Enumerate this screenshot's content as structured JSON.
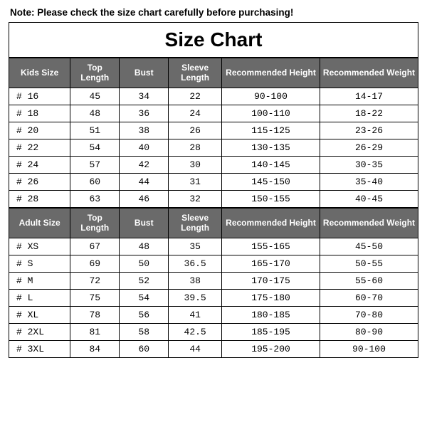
{
  "note_text": "Note: Please check the size chart carefully before purchasing!",
  "title": "Size Chart",
  "styling": {
    "header_bg": "#6a6a6a",
    "header_fg": "#ffffff",
    "border_color": "#000000",
    "body_bg": "#ffffff",
    "title_fontsize": 28,
    "header_fontsize": 12,
    "cell_fontsize": 13,
    "cell_font": "monospace"
  },
  "kids": {
    "headers": {
      "size": "Kids Size",
      "top": "Top Length",
      "bust": "Bust",
      "sleeve": "Sleeve Length",
      "height": "Recommended Height",
      "weight": "Recommended Weight"
    },
    "rows": [
      {
        "size": "# 16",
        "top": "45",
        "bust": "34",
        "sleeve": "22",
        "height": "90-100",
        "weight": "14-17"
      },
      {
        "size": "# 18",
        "top": "48",
        "bust": "36",
        "sleeve": "24",
        "height": "100-110",
        "weight": "18-22"
      },
      {
        "size": "# 20",
        "top": "51",
        "bust": "38",
        "sleeve": "26",
        "height": "115-125",
        "weight": "23-26"
      },
      {
        "size": "# 22",
        "top": "54",
        "bust": "40",
        "sleeve": "28",
        "height": "130-135",
        "weight": "26-29"
      },
      {
        "size": "# 24",
        "top": "57",
        "bust": "42",
        "sleeve": "30",
        "height": "140-145",
        "weight": "30-35"
      },
      {
        "size": "# 26",
        "top": "60",
        "bust": "44",
        "sleeve": "31",
        "height": "145-150",
        "weight": "35-40"
      },
      {
        "size": "# 28",
        "top": "63",
        "bust": "46",
        "sleeve": "32",
        "height": "150-155",
        "weight": "40-45"
      }
    ]
  },
  "adult": {
    "headers": {
      "size": "Adult Size",
      "top": "Top Length",
      "bust": "Bust",
      "sleeve": "Sleeve Length",
      "height": "Recommended Height",
      "weight": "Recommended Weight"
    },
    "rows": [
      {
        "size": "# XS",
        "top": "67",
        "bust": "48",
        "sleeve": "35",
        "height": "155-165",
        "weight": "45-50"
      },
      {
        "size": "# S",
        "top": "69",
        "bust": "50",
        "sleeve": "36.5",
        "height": "165-170",
        "weight": "50-55"
      },
      {
        "size": "# M",
        "top": "72",
        "bust": "52",
        "sleeve": "38",
        "height": "170-175",
        "weight": "55-60"
      },
      {
        "size": "# L",
        "top": "75",
        "bust": "54",
        "sleeve": "39.5",
        "height": "175-180",
        "weight": "60-70"
      },
      {
        "size": "# XL",
        "top": "78",
        "bust": "56",
        "sleeve": "41",
        "height": "180-185",
        "weight": "70-80"
      },
      {
        "size": "# 2XL",
        "top": "81",
        "bust": "58",
        "sleeve": "42.5",
        "height": "185-195",
        "weight": "80-90"
      },
      {
        "size": "# 3XL",
        "top": "84",
        "bust": "60",
        "sleeve": "44",
        "height": "195-200",
        "weight": "90-100"
      }
    ]
  }
}
